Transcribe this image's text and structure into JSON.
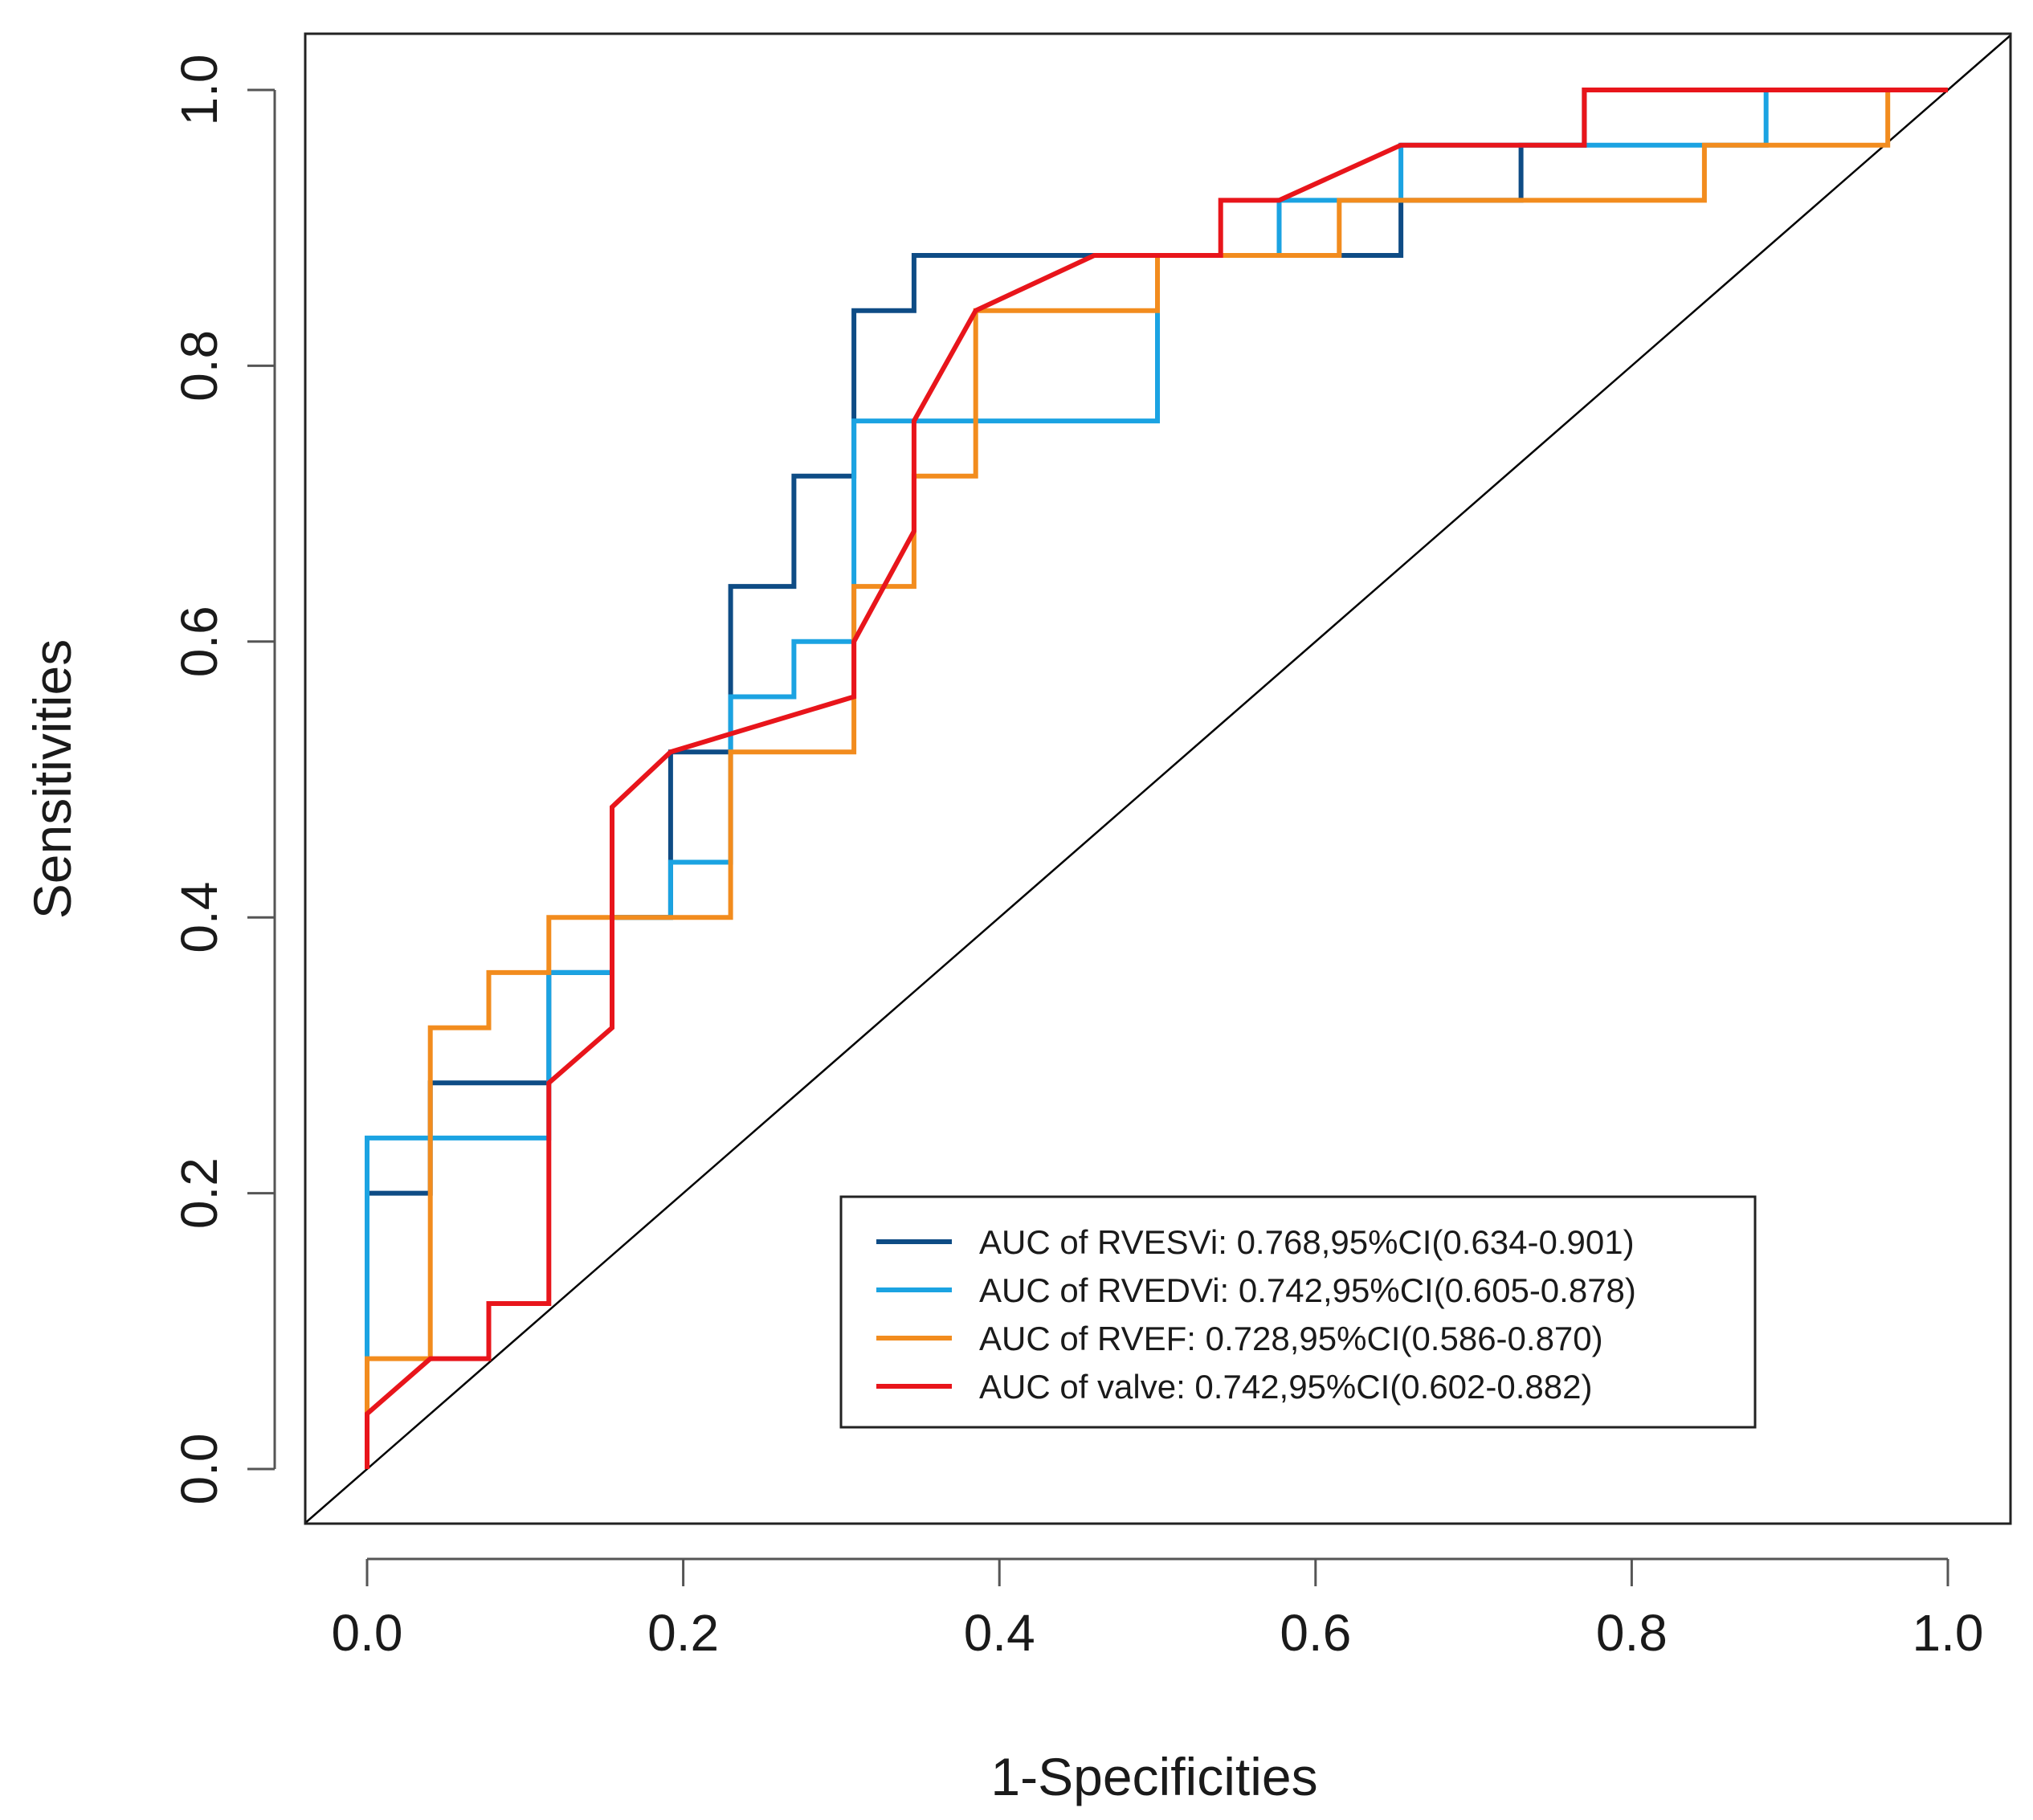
{
  "chart_data": {
    "type": "line",
    "title": "",
    "xlabel": "1-Specificities",
    "ylabel": "Sensitivities",
    "xlim": [
      0,
      1
    ],
    "ylim": [
      0,
      1
    ],
    "x_ticks": [
      "0.0",
      "0.2",
      "0.4",
      "0.6",
      "0.8",
      "1.0"
    ],
    "y_ticks": [
      "0.0",
      "0.2",
      "0.4",
      "0.6",
      "0.8",
      "1.0"
    ],
    "grid": false,
    "legend_position": "bottom-right",
    "reference_line": {
      "from": [
        0,
        0
      ],
      "to": [
        1,
        1
      ],
      "color": "#000000"
    },
    "series": [
      {
        "name": "AUC of RVESVi: 0.768,95%CI(0.634-0.901)",
        "color": "#0e4c85",
        "x": [
          0,
          0,
          0.04,
          0.04,
          0.115,
          0.115,
          0.155,
          0.155,
          0.192,
          0.192,
          0.23,
          0.23,
          0.27,
          0.27,
          0.308,
          0.308,
          0.346,
          0.346,
          0.46,
          0.5,
          0.5,
          0.654,
          0.654,
          0.73,
          0.73,
          0.77,
          0.77,
          1.0
        ],
        "y": [
          0,
          0.2,
          0.2,
          0.28,
          0.28,
          0.36,
          0.36,
          0.4,
          0.4,
          0.52,
          0.52,
          0.64,
          0.64,
          0.72,
          0.72,
          0.84,
          0.84,
          0.88,
          0.88,
          0.88,
          0.88,
          0.88,
          0.92,
          0.92,
          0.96,
          0.96,
          1.0,
          1.0
        ]
      },
      {
        "name": "AUC of RVEDVi: 0.742,95%CI(0.605-0.878)",
        "color": "#1ba3e2",
        "x": [
          0,
          0,
          0.115,
          0.115,
          0.155,
          0.155,
          0.192,
          0.192,
          0.23,
          0.23,
          0.27,
          0.27,
          0.308,
          0.308,
          0.5,
          0.5,
          0.54,
          0.54,
          0.577,
          0.577,
          0.654,
          0.654,
          0.885,
          0.885,
          1.0
        ],
        "y": [
          0.08,
          0.24,
          0.24,
          0.36,
          0.36,
          0.4,
          0.4,
          0.44,
          0.44,
          0.56,
          0.56,
          0.6,
          0.6,
          0.76,
          0.76,
          0.88,
          0.88,
          0.88,
          0.88,
          0.92,
          0.92,
          0.96,
          0.96,
          1.0,
          1.0
        ]
      },
      {
        "name": "AUC of RVEF: 0.728,95%CI(0.586-0.870)",
        "color": "#f28c1e",
        "x": [
          0,
          0,
          0.04,
          0.04,
          0.077,
          0.077,
          0.115,
          0.115,
          0.23,
          0.23,
          0.308,
          0.308,
          0.346,
          0.346,
          0.385,
          0.385,
          0.5,
          0.5,
          0.615,
          0.615,
          0.846,
          0.846,
          0.962,
          0.962
        ],
        "y": [
          0.04,
          0.08,
          0.08,
          0.32,
          0.32,
          0.36,
          0.36,
          0.4,
          0.4,
          0.52,
          0.52,
          0.64,
          0.64,
          0.72,
          0.72,
          0.84,
          0.84,
          0.88,
          0.88,
          0.92,
          0.92,
          0.96,
          0.96,
          1.0
        ]
      },
      {
        "name": "AUC of valve: 0.742,95%CI(0.602-0.882)",
        "color": "#e8151b",
        "x": [
          0,
          0,
          0.04,
          0.077,
          0.077,
          0.115,
          0.115,
          0.155,
          0.155,
          0.192,
          0.308,
          0.308,
          0.346,
          0.346,
          0.385,
          0.46,
          0.54,
          0.54,
          0.577,
          0.654,
          0.77,
          0.77,
          1.0
        ],
        "y": [
          0,
          0.04,
          0.08,
          0.08,
          0.12,
          0.12,
          0.28,
          0.32,
          0.48,
          0.52,
          0.56,
          0.6,
          0.68,
          0.76,
          0.84,
          0.88,
          0.88,
          0.92,
          0.92,
          0.96,
          0.96,
          1.0,
          1.0
        ]
      }
    ]
  }
}
